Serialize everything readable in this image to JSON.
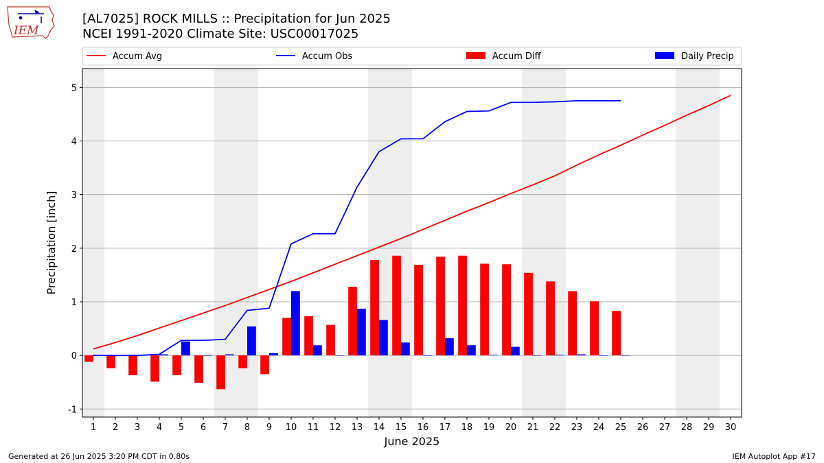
{
  "header": {
    "logo_text": "IEM",
    "title_line1": "[AL7025] ROCK MILLS :: Precipitation for Jun 2025",
    "title_line2": "NCEI 1991-2020 Climate Site: USC00017025"
  },
  "footer": {
    "left": "Generated at 26 Jun 2025 3:20 PM CDT in 0.80s",
    "right": "IEM Autoplot App #17"
  },
  "colors": {
    "accum_avg": "#ff0000",
    "accum_obs": "#0000ff",
    "accum_diff": "#ff0000",
    "daily_precip": "#0000ff",
    "weekend_shade": "#eeeeee",
    "grid": "#b0b0b0"
  },
  "chart_data": {
    "type": "bar",
    "xlabel": "June 2025",
    "ylabel": "Precipitation [inch]",
    "xlim": [
      0.5,
      30.5
    ],
    "ylim": [
      -1.15,
      5.35
    ],
    "yticks": [
      -1,
      0,
      1,
      2,
      3,
      4,
      5
    ],
    "xticks": [
      "1",
      "2",
      "3",
      "4",
      "5",
      "6",
      "7",
      "8",
      "9",
      "10",
      "11",
      "12",
      "13",
      "14",
      "15",
      "16",
      "17",
      "18",
      "19",
      "20",
      "21",
      "22",
      "23",
      "24",
      "25",
      "26",
      "27",
      "28",
      "29",
      "30"
    ],
    "grid": "horizontal",
    "legend_position": "top",
    "weekend_days": [
      1,
      7,
      8,
      14,
      15,
      21,
      22,
      28,
      29
    ],
    "series": [
      {
        "name": "Accum Avg",
        "kind": "line",
        "x": [
          1,
          2,
          3,
          4,
          5,
          6,
          7,
          8,
          9,
          10,
          11,
          12,
          13,
          14,
          15,
          16,
          17,
          18,
          19,
          20,
          21,
          22,
          23,
          24,
          25,
          26,
          27,
          28,
          29,
          30
        ],
        "values": [
          0.12,
          0.24,
          0.37,
          0.51,
          0.65,
          0.79,
          0.93,
          1.08,
          1.23,
          1.38,
          1.54,
          1.7,
          1.86,
          2.02,
          2.18,
          2.35,
          2.52,
          2.69,
          2.85,
          3.02,
          3.18,
          3.35,
          3.55,
          3.74,
          3.92,
          4.11,
          4.29,
          4.48,
          4.66,
          4.85
        ]
      },
      {
        "name": "Accum Obs",
        "kind": "line",
        "x": [
          1,
          2,
          3,
          4,
          5,
          6,
          7,
          8,
          9,
          10,
          11,
          12,
          13,
          14,
          15,
          16,
          17,
          18,
          19,
          20,
          21,
          22,
          23,
          24,
          25
        ],
        "values": [
          0.0,
          0.0,
          0.0,
          0.02,
          0.28,
          0.28,
          0.3,
          0.84,
          0.88,
          2.08,
          2.27,
          2.27,
          3.14,
          3.8,
          4.04,
          4.04,
          4.36,
          4.55,
          4.56,
          4.72,
          4.72,
          4.73,
          4.75,
          4.75,
          4.75
        ]
      },
      {
        "name": "Accum Diff",
        "kind": "bar",
        "x": [
          1,
          2,
          3,
          4,
          5,
          6,
          7,
          8,
          9,
          10,
          11,
          12,
          13,
          14,
          15,
          16,
          17,
          18,
          19,
          20,
          21,
          22,
          23,
          24,
          25
        ],
        "values": [
          -0.12,
          -0.24,
          -0.37,
          -0.49,
          -0.37,
          -0.51,
          -0.63,
          -0.24,
          -0.35,
          0.7,
          0.73,
          0.57,
          1.28,
          1.78,
          1.86,
          1.69,
          1.84,
          1.86,
          1.71,
          1.7,
          1.54,
          1.38,
          1.2,
          1.01,
          0.83
        ]
      },
      {
        "name": "Daily Precip",
        "kind": "bar",
        "x": [
          1,
          2,
          3,
          4,
          5,
          6,
          7,
          8,
          9,
          10,
          11,
          12,
          13,
          14,
          15,
          16,
          17,
          18,
          19,
          20,
          21,
          22,
          23,
          24,
          25
        ],
        "values": [
          0.0,
          0.0,
          0.0,
          0.02,
          0.26,
          0.0,
          0.02,
          0.54,
          0.04,
          1.2,
          0.19,
          0.0,
          0.87,
          0.66,
          0.24,
          0.0,
          0.32,
          0.19,
          0.01,
          0.16,
          0.0,
          0.01,
          0.02,
          0.0,
          0.0
        ]
      }
    ]
  }
}
